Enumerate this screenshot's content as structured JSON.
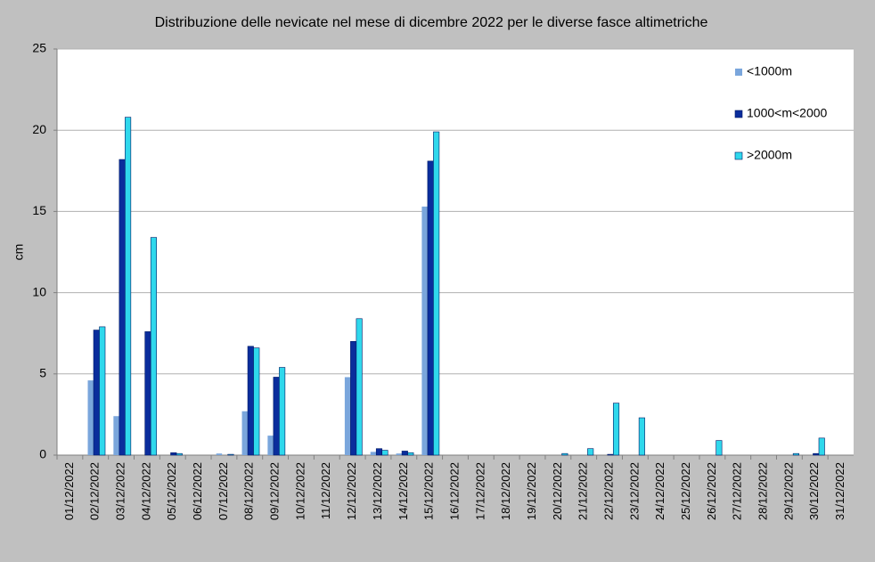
{
  "chart_data": {
    "type": "bar",
    "title": "Distribuzione  delle nevicate  nel mese di dicembre 2022 per le diverse  fasce altimetriche",
    "y_label": "cm",
    "categories": [
      "01/12/2022",
      "02/12/2022",
      "03/12/2022",
      "04/12/2022",
      "05/12/2022",
      "06/12/2022",
      "07/12/2022",
      "08/12/2022",
      "09/12/2022",
      "10/12/2022",
      "11/12/2022",
      "12/12/2022",
      "13/12/2022",
      "14/12/2022",
      "15/12/2022",
      "16/12/2022",
      "17/12/2022",
      "18/12/2022",
      "19/12/2022",
      "20/12/2022",
      "21/12/2022",
      "22/12/2022",
      "23/12/2022",
      "24/12/2022",
      "25/12/2022",
      "26/12/2022",
      "27/12/2022",
      "28/12/2022",
      "29/12/2022",
      "30/12/2022",
      "31/12/2022"
    ],
    "series": [
      {
        "name": "<1000m",
        "color": "#7aa6dc",
        "values": [
          0,
          4.6,
          2.4,
          0,
          0,
          0,
          0.1,
          2.7,
          1.2,
          0,
          0,
          4.8,
          0.2,
          0.1,
          15.3,
          0,
          0,
          0,
          0,
          0,
          0,
          0,
          0,
          0,
          0,
          0,
          0,
          0,
          0,
          0,
          0
        ]
      },
      {
        "name": "1000<m<2000",
        "color": "#0a2d9c",
        "values": [
          0,
          7.7,
          18.2,
          7.6,
          0.15,
          0,
          0,
          6.7,
          4.8,
          0,
          0,
          7.0,
          0.4,
          0.25,
          18.1,
          0,
          0,
          0,
          0,
          0,
          0,
          0.05,
          0,
          0,
          0,
          0,
          0,
          0,
          0,
          0.1,
          0
        ]
      },
      {
        "name": ">2000m",
        "color": "#2fd8ec",
        "values": [
          0,
          7.9,
          20.8,
          13.4,
          0.1,
          0,
          0.05,
          6.6,
          5.4,
          0,
          0,
          8.4,
          0.3,
          0.15,
          19.9,
          0,
          0,
          0,
          0,
          0.1,
          0.4,
          3.2,
          2.3,
          0,
          0,
          0.9,
          0,
          0,
          0.1,
          1.05,
          0
        ]
      }
    ],
    "ylim": [
      0,
      25
    ],
    "yticks": [
      0,
      5,
      10,
      15,
      20,
      25
    ],
    "grid": true,
    "legend": "upper right"
  }
}
